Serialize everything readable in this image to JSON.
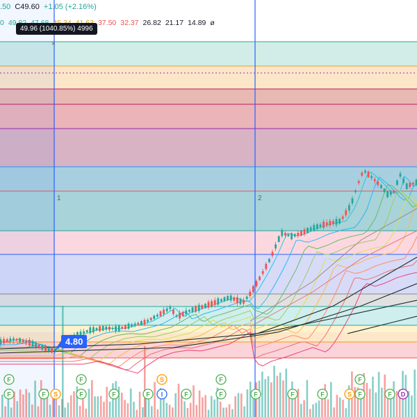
{
  "legend": {
    "ohlc": [
      ".50",
      "C49.60",
      "+1.05 (+2.16%)"
    ],
    "ma_values": [
      {
        "text": "0",
        "color": "#26a69a"
      },
      {
        "text": "49.82",
        "color": "#26a69a"
      },
      {
        "text": "47.68",
        "color": "#26a69a"
      },
      {
        "text": "45.34",
        "color": "#d4a017"
      },
      {
        "text": "41.63",
        "color": "#d4a017"
      },
      {
        "text": "37.50",
        "color": "#ef5350"
      },
      {
        "text": "32.37",
        "color": "#ef5350"
      },
      {
        "text": "26.82",
        "color": "#131722"
      },
      {
        "text": "21.17",
        "color": "#131722"
      },
      {
        "text": "14.89",
        "color": "#131722"
      },
      {
        "text": "ø",
        "color": "#131722"
      }
    ]
  },
  "tooltip": {
    "text": "49.96 (1040.85%) 4996"
  },
  "price_label": {
    "text": "4.80"
  },
  "vertical_lines": [
    {
      "label": "1",
      "x": 78
    },
    {
      "label": "2",
      "x": 367
    }
  ],
  "event_badges": {
    "row1": [
      {
        "letter": "F",
        "color": "#4caf50",
        "x": 13
      },
      {
        "letter": "F",
        "color": "#4caf50",
        "x": 117
      },
      {
        "letter": "S",
        "color": "#ff9800",
        "x": 233
      },
      {
        "letter": "F",
        "color": "#4caf50",
        "x": 318
      },
      {
        "letter": "F",
        "color": "#4caf50",
        "x": 518
      }
    ],
    "row2": [
      {
        "letter": "F",
        "color": "#4caf50",
        "x": 13
      },
      {
        "letter": "F",
        "color": "#4caf50",
        "x": 63
      },
      {
        "letter": "S",
        "color": "#ff9800",
        "x": 80
      },
      {
        "letter": "F",
        "color": "#4caf50",
        "x": 117
      },
      {
        "letter": "F",
        "color": "#4caf50",
        "x": 164
      },
      {
        "letter": "F",
        "color": "#4caf50",
        "x": 213
      },
      {
        "letter": "I",
        "color": "#2962ff",
        "x": 233
      },
      {
        "letter": "F",
        "color": "#4caf50",
        "x": 268
      },
      {
        "letter": "F",
        "color": "#4caf50",
        "x": 318
      },
      {
        "letter": "F",
        "color": "#4caf50",
        "x": 368
      },
      {
        "letter": "F",
        "color": "#4caf50",
        "x": 421
      },
      {
        "letter": "F",
        "color": "#4caf50",
        "x": 464
      },
      {
        "letter": "S",
        "color": "#ff9800",
        "x": 503
      },
      {
        "letter": "F",
        "color": "#4caf50",
        "x": 518
      },
      {
        "letter": "F",
        "color": "#4caf50",
        "x": 561
      },
      {
        "letter": "D",
        "color": "#9c27b0",
        "x": 580
      }
    ]
  }
}
